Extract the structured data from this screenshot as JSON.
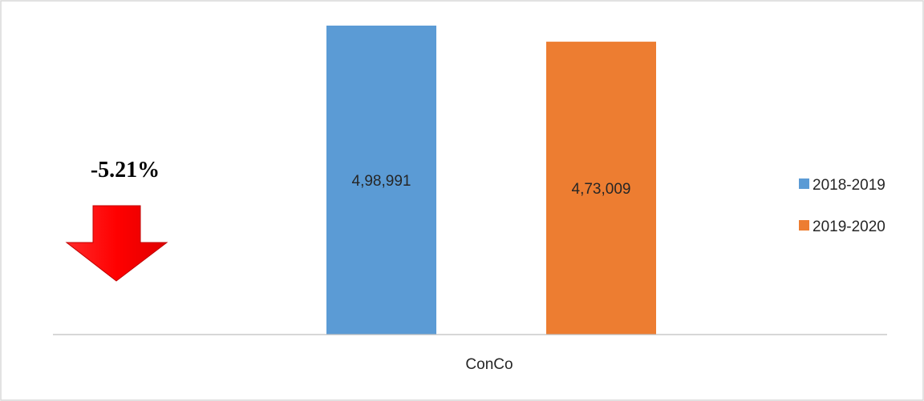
{
  "chart_data": {
    "type": "bar",
    "categories": [
      "ConCo"
    ],
    "series": [
      {
        "name": "2018-2019",
        "values": [
          498991
        ],
        "label": "4,98,991",
        "color": "#5b9bd5"
      },
      {
        "name": "2019-2020",
        "values": [
          473009
        ],
        "label": "4,73,009",
        "color": "#ed7d31"
      }
    ],
    "ylim": [
      0,
      530000
    ],
    "grid": false,
    "legend_position": "right",
    "annotation": {
      "text": "-5.21%",
      "icon": "down-arrow-icon",
      "color": "#ff0000"
    }
  }
}
